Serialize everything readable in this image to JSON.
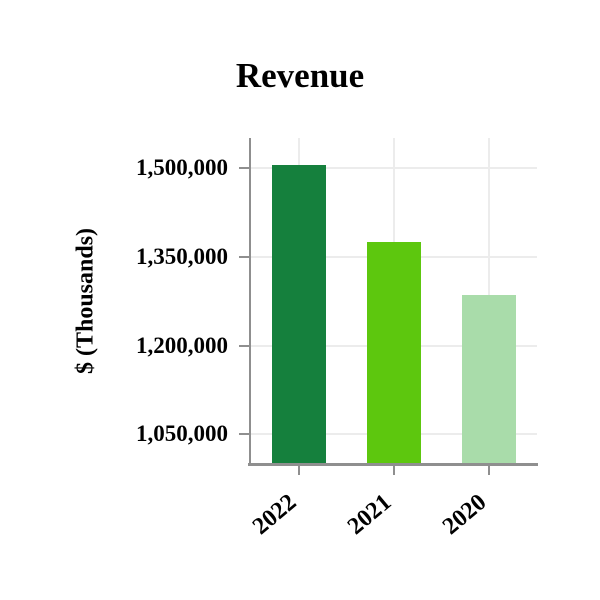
{
  "figure": {
    "title": "Revenue",
    "background": "#ffffff"
  },
  "chart_data": {
    "type": "bar",
    "title": "Revenue",
    "categories": [
      "2022",
      "2021",
      "2020"
    ],
    "values": [
      1505000,
      1375000,
      1285000
    ],
    "xlabel": "",
    "ylabel": "$ (Thousands)",
    "ylim": [
      1000000,
      1551000
    ],
    "yticks": [
      1050000,
      1200000,
      1350000,
      1500000
    ],
    "ytick_labels": [
      "1,050,000",
      "1,200,000",
      "1,350,000",
      "1,500,000"
    ],
    "bar_colors": [
      "#15803d",
      "#5dc70e",
      "#a9dcaa"
    ],
    "grid": true,
    "legend": false
  },
  "style": {
    "axis_color": "#8f8f8f",
    "grid_color": "#ececec",
    "text_color": "#000000"
  }
}
